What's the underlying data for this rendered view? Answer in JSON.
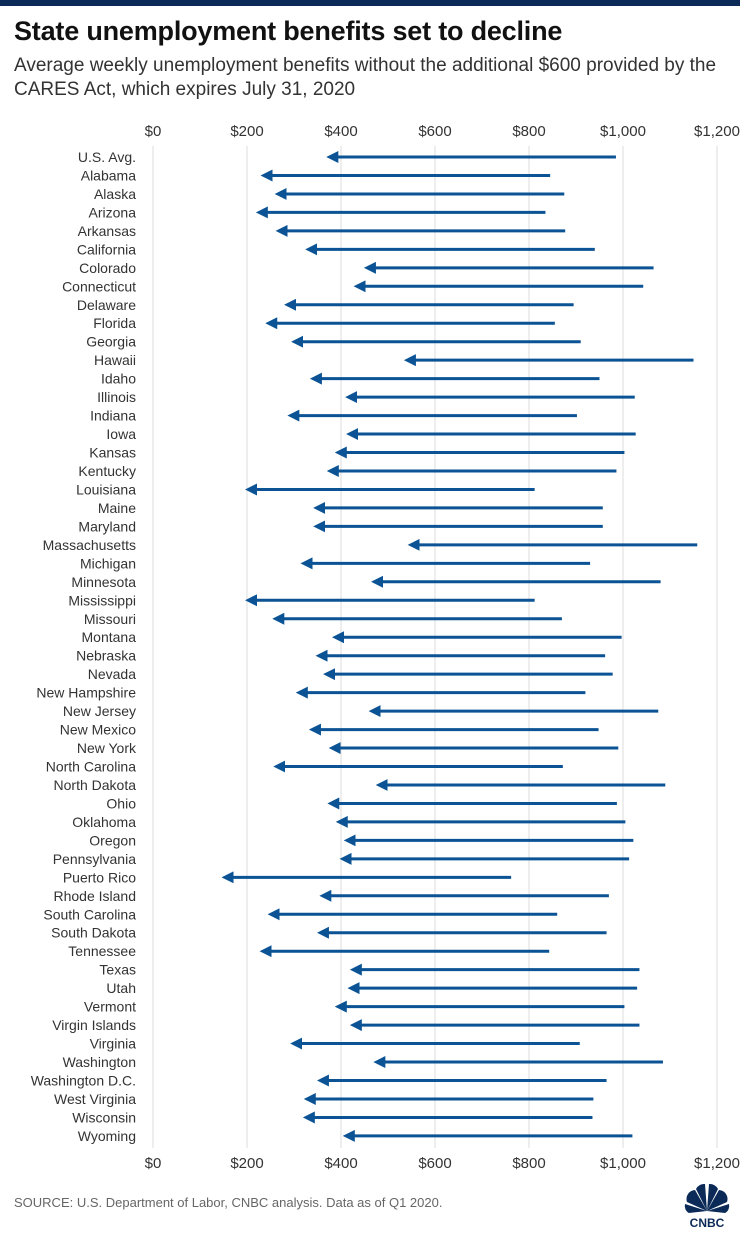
{
  "header": {
    "title": "State unemployment benefits set to decline",
    "subtitle": "Average weekly unemployment benefits without the additional $600 provided by the CARES Act, which expires July 31, 2020"
  },
  "footer": {
    "source": "SOURCE: U.S. Department of Labor, CNBC analysis. Data as of Q1 2020.",
    "logo_text": "CNBC"
  },
  "colors": {
    "arrow": "#0b5394",
    "grid": "#dddddd",
    "text": "#333333"
  },
  "chart_data": {
    "type": "arrow-range",
    "title": "",
    "xlabel": "",
    "ylabel": "",
    "xlim": [
      0,
      1200
    ],
    "x_ticks": [
      0,
      200,
      400,
      600,
      800,
      1000,
      1200
    ],
    "x_tick_labels": [
      "$0",
      "$200",
      "$400",
      "$600",
      "$800",
      "$1,000",
      "$1,200"
    ],
    "x_ticks_position": "top and bottom",
    "grid": "vertical",
    "categories": [
      "U.S. Avg.",
      "Alabama",
      "Alaska",
      "Arizona",
      "Arkansas",
      "California",
      "Colorado",
      "Connecticut",
      "Delaware",
      "Florida",
      "Georgia",
      "Hawaii",
      "Idaho",
      "Illinois",
      "Indiana",
      "Iowa",
      "Kansas",
      "Kentucky",
      "Louisiana",
      "Maine",
      "Maryland",
      "Massachusetts",
      "Michigan",
      "Minnesota",
      "Mississippi",
      "Missouri",
      "Montana",
      "Nebraska",
      "Nevada",
      "New Hampshire",
      "New Jersey",
      "New Mexico",
      "New York",
      "North Carolina",
      "North Dakota",
      "Ohio",
      "Oklahoma",
      "Oregon",
      "Pennsylvania",
      "Puerto Rico",
      "Rhode Island",
      "South Carolina",
      "South Dakota",
      "Tennessee",
      "Texas",
      "Utah",
      "Vermont",
      "Virgin Islands",
      "Virginia",
      "Washington",
      "Washington D.C.",
      "West Virginia",
      "Wisconsin",
      "Wyoming"
    ],
    "series": [
      {
        "values_with_600": [
          985,
          845,
          875,
          835,
          877,
          940,
          1065,
          1043,
          895,
          855,
          910,
          1150,
          950,
          1025,
          902,
          1027,
          1003,
          986,
          812,
          957,
          957,
          1158,
          930,
          1080,
          812,
          870,
          997,
          962,
          978,
          920,
          1075,
          948,
          990,
          872,
          1090,
          987,
          1005,
          1022,
          1013,
          762,
          970,
          860,
          965,
          843,
          1035,
          1030,
          1003,
          1035,
          908,
          1085,
          965,
          937,
          935,
          1020
        ]
      },
      {
        "values_without_600": [
          385,
          245,
          275,
          235,
          277,
          340,
          465,
          443,
          295,
          255,
          310,
          550,
          350,
          425,
          302,
          427,
          403,
          386,
          212,
          357,
          357,
          558,
          330,
          480,
          212,
          270,
          397,
          362,
          378,
          320,
          475,
          348,
          390,
          272,
          490,
          387,
          405,
          422,
          413,
          162,
          370,
          260,
          365,
          243,
          435,
          430,
          403,
          435,
          308,
          485,
          365,
          337,
          335,
          420
        ]
      }
    ]
  }
}
